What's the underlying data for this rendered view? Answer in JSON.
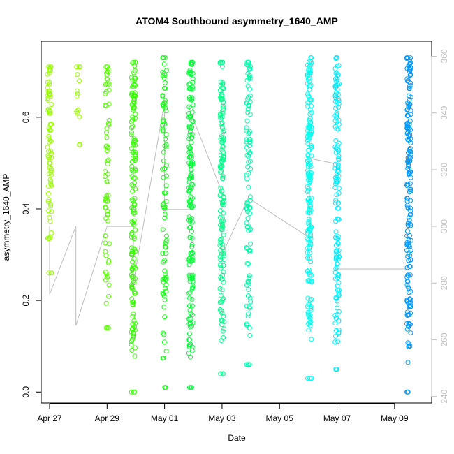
{
  "chart_data": {
    "type": "scatter",
    "title": "ATOM4 Southbound asymmetry_1640_AMP",
    "xlabel": "Date",
    "ylabel": "asymmetry_1640_AMP",
    "x_ticks": [
      "Apr 27",
      "Apr 29",
      "May 01",
      "May 03",
      "May 05",
      "May 07",
      "May 09"
    ],
    "y_ticks": [
      0.0,
      0.2,
      0.4,
      0.6
    ],
    "y_right_ticks": [
      240,
      260,
      280,
      300,
      320,
      340,
      360
    ],
    "xlim": [
      "2016-04-26T17:00",
      "2016-05-10T07:00"
    ],
    "ylim": [
      -0.024,
      0.766
    ],
    "y_right_lim": [
      237.7,
      365.3
    ],
    "grid": false,
    "clusters": [
      {
        "date": "2016-04-27T00:00",
        "color": "#99ff00",
        "y_min": 0.26,
        "y_max": 0.71,
        "count": 80
      },
      {
        "date": "2016-04-28T00:00",
        "color": "#99ff00",
        "y_min": 0.54,
        "y_max": 0.71,
        "count": 15
      },
      {
        "date": "2016-04-29T00:00",
        "color": "#55ff00",
        "y_min": 0.14,
        "y_max": 0.71,
        "count": 70
      },
      {
        "date": "2016-04-29T22:00",
        "color": "#33ff00",
        "y_min": 0.0,
        "y_max": 0.72,
        "count": 160
      },
      {
        "date": "2016-05-01T00:00",
        "color": "#11ff11",
        "y_min": 0.01,
        "y_max": 0.73,
        "count": 90
      },
      {
        "date": "2016-05-01T22:00",
        "color": "#00ff33",
        "y_min": 0.01,
        "y_max": 0.72,
        "count": 170
      },
      {
        "date": "2016-05-03T00:00",
        "color": "#00ff88",
        "y_min": 0.04,
        "y_max": 0.72,
        "count": 140
      },
      {
        "date": "2016-05-03T22:00",
        "color": "#00ffaa",
        "y_min": 0.06,
        "y_max": 0.72,
        "count": 110
      },
      {
        "date": "2016-05-06T01:00",
        "color": "#00ffee",
        "y_min": 0.03,
        "y_max": 0.73,
        "count": 180
      },
      {
        "date": "2016-05-07T00:00",
        "color": "#00eeff",
        "y_min": 0.05,
        "y_max": 0.73,
        "count": 150
      },
      {
        "date": "2016-05-09T12:00",
        "color": "#0099ff",
        "y_min": 0.0,
        "y_max": 0.73,
        "count": 190
      }
    ],
    "trace": [
      {
        "date": "2016-04-27T00:00",
        "right_value": 300
      },
      {
        "date": "2016-04-27T00:00",
        "right_value": 276
      },
      {
        "date": "2016-04-27T22:00",
        "right_value": 300
      },
      {
        "date": "2016-04-27T22:00",
        "right_value": 265
      },
      {
        "date": "2016-04-29T00:00",
        "right_value": 300
      },
      {
        "date": "2016-04-29T22:00",
        "right_value": 300
      },
      {
        "date": "2016-04-29T22:00",
        "right_value": 280
      },
      {
        "date": "2016-05-01T00:00",
        "right_value": 344
      },
      {
        "date": "2016-05-01T00:00",
        "right_value": 306
      },
      {
        "date": "2016-05-01T22:00",
        "right_value": 306
      },
      {
        "date": "2016-05-01T22:00",
        "right_value": 340
      },
      {
        "date": "2016-05-03T00:00",
        "right_value": 312
      },
      {
        "date": "2016-05-03T00:00",
        "right_value": 290
      },
      {
        "date": "2016-05-03T22:00",
        "right_value": 310
      },
      {
        "date": "2016-05-06T01:00",
        "right_value": 296
      },
      {
        "date": "2016-05-06T01:00",
        "right_value": 324
      },
      {
        "date": "2016-05-07T00:00",
        "right_value": 322
      },
      {
        "date": "2016-05-07T00:00",
        "right_value": 285
      },
      {
        "date": "2016-05-09T12:00",
        "right_value": 285
      },
      {
        "date": "2016-05-09T12:00",
        "right_value": 322
      }
    ]
  }
}
